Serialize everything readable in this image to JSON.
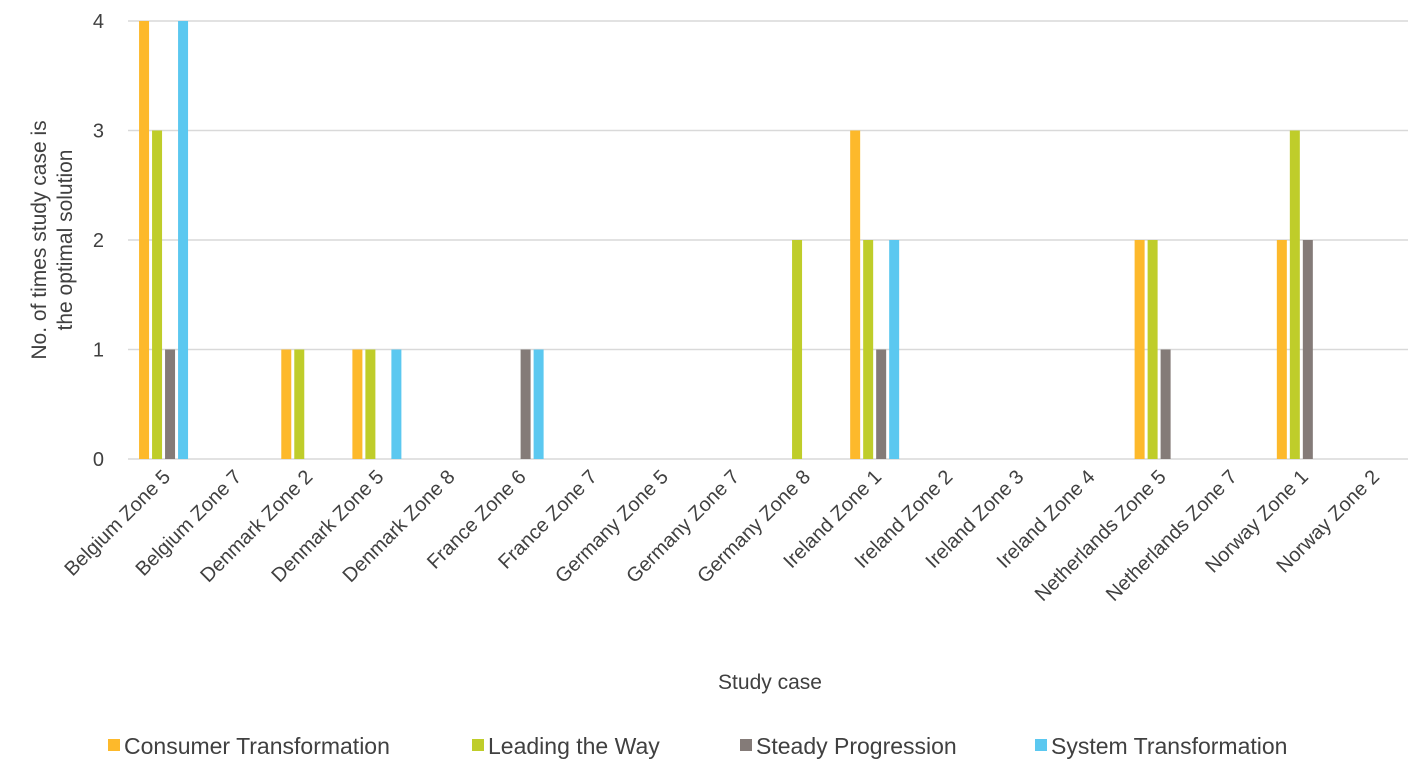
{
  "chart_data": {
    "type": "bar",
    "xlabel": "Study case",
    "ylabel": [
      "No. of times study case is",
      "the optimal solution"
    ],
    "ylim": [
      0,
      4
    ],
    "yticks": [
      0,
      1,
      2,
      3,
      4
    ],
    "grid": true,
    "legend_position": "bottom",
    "categories": [
      "Belgium Zone 5",
      "Belgium Zone 7",
      "Denmark Zone 2",
      "Denmark Zone 5",
      "Denmark Zone 8",
      "France Zone 6",
      "France Zone 7",
      "Germany Zone 5",
      "Germany Zone 7",
      "Germany Zone 8",
      "Ireland Zone 1",
      "Ireland Zone 2",
      "Ireland Zone 3",
      "Ireland Zone 4",
      "Netherlands Zone 5",
      "Netherlands Zone 7",
      "Norway Zone 1",
      "Norway Zone 2"
    ],
    "series": [
      {
        "name": "Consumer Transformation",
        "color": "#FDB92B",
        "values": [
          4,
          0,
          1,
          1,
          0,
          0,
          0,
          0,
          0,
          0,
          3,
          0,
          0,
          0,
          2,
          0,
          2,
          0
        ]
      },
      {
        "name": "Leading the Way",
        "color": "#BFCD2A",
        "values": [
          3,
          0,
          1,
          1,
          0,
          0,
          0,
          0,
          0,
          2,
          2,
          0,
          0,
          0,
          2,
          0,
          3,
          0
        ]
      },
      {
        "name": "Steady Progression",
        "color": "#847B78",
        "values": [
          1,
          0,
          0,
          0,
          0,
          1,
          0,
          0,
          0,
          0,
          1,
          0,
          0,
          0,
          1,
          0,
          2,
          0
        ]
      },
      {
        "name": "System Transformation",
        "color": "#5BC8F0",
        "values": [
          4,
          0,
          0,
          1,
          0,
          1,
          0,
          0,
          0,
          0,
          2,
          0,
          0,
          0,
          0,
          0,
          0,
          0
        ]
      }
    ]
  }
}
